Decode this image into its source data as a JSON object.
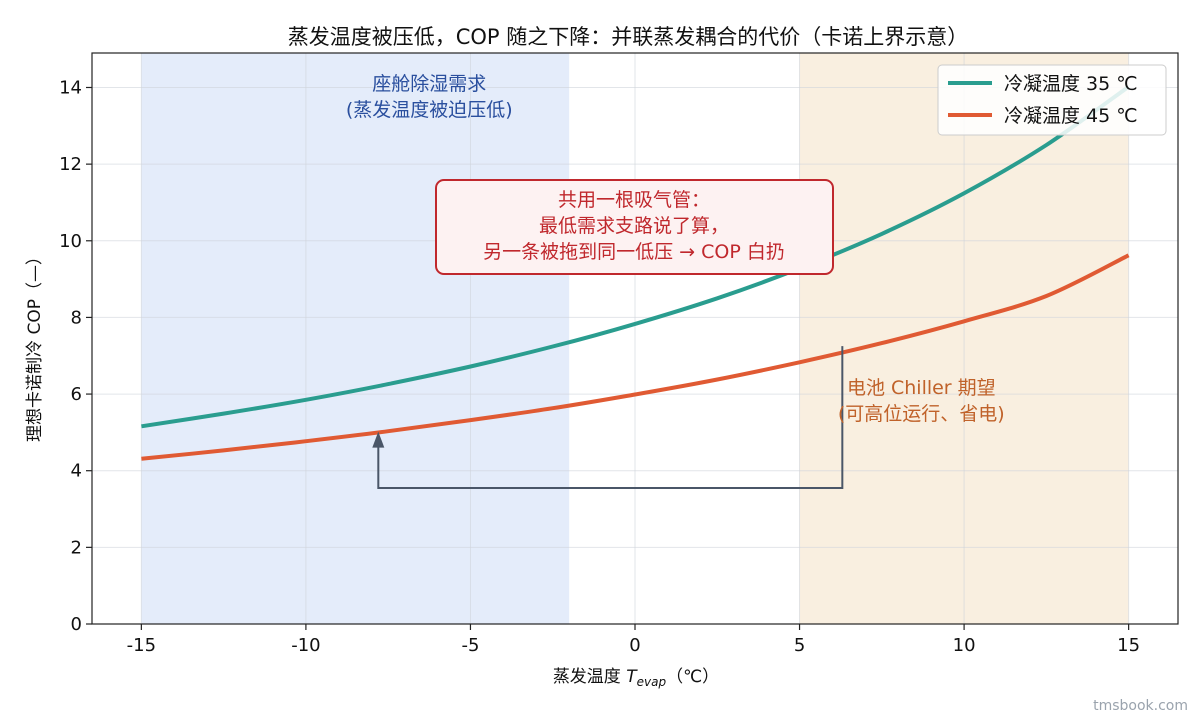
{
  "chart_data": {
    "type": "line",
    "title": "蒸发温度被压低，COP 随之下降：并联蒸发耦合的代价（卡诺上界示意）",
    "xlabel_prefix": "蒸发温度 ",
    "xlabel_var": "T",
    "xlabel_sub": "evap",
    "xlabel_suffix": "（℃）",
    "ylabel": "理想卡诺制冷 COP（—）",
    "xlim": [
      -16.5,
      16.5
    ],
    "ylim": [
      0,
      14.9
    ],
    "xticks": [
      -15,
      -10,
      -5,
      0,
      5,
      10,
      15
    ],
    "xtick_labels": [
      "-15",
      "-10",
      "-5",
      "0",
      "5",
      "10",
      "15"
    ],
    "yticks": [
      0,
      2,
      4,
      6,
      8,
      10,
      12,
      14
    ],
    "ytick_labels": [
      "0",
      "2",
      "4",
      "6",
      "8",
      "10",
      "12",
      "14"
    ],
    "grid": true,
    "legend_position": "top-right",
    "x": [
      -15,
      -12.5,
      -10,
      -7.5,
      -5,
      -2.5,
      0,
      2.5,
      5,
      7.5,
      10,
      12.5,
      15
    ],
    "series": [
      {
        "name": "冷凝温度 35 ℃",
        "color": "#2a9d8f",
        "values": [
          5.16,
          5.49,
          5.85,
          6.26,
          6.72,
          7.24,
          7.83,
          8.5,
          9.28,
          10.18,
          11.24,
          12.5,
          14.02
        ]
      },
      {
        "name": "冷凝温度 45 ℃",
        "color": "#e05a33",
        "values": [
          4.31,
          4.53,
          4.77,
          5.03,
          5.32,
          5.63,
          5.99,
          6.38,
          6.83,
          7.33,
          7.9,
          8.56,
          9.62
        ]
      }
    ],
    "bands": [
      {
        "x0": -15,
        "x1": -2,
        "color": "#dbe6f8",
        "label_color": "#2a4f9e",
        "label_lines": [
          "座舱除湿需求",
          "(蒸发温度被迫压低)"
        ]
      },
      {
        "x0": 5,
        "x1": 15,
        "color": "#f7ead6",
        "label_color": "#c0622a",
        "label_lines": [
          "电池 Chiller 期望",
          "(可高位运行、省电)"
        ]
      }
    ],
    "callout": {
      "lines": [
        "共用一根吸气管：",
        "最低需求支路说了算，",
        "另一条被拖到同一低压 → COP 白扔"
      ],
      "border_color": "#c0282d",
      "text_color": "#c0282d",
      "fill_color": "#fdf2f2"
    },
    "arrow": {
      "from": [
        6.3,
        7.25
      ],
      "corner_y": 3.55,
      "to": [
        -7.8,
        5.02
      ],
      "color": "#4a5668"
    }
  },
  "watermark": "tmsbook.com"
}
